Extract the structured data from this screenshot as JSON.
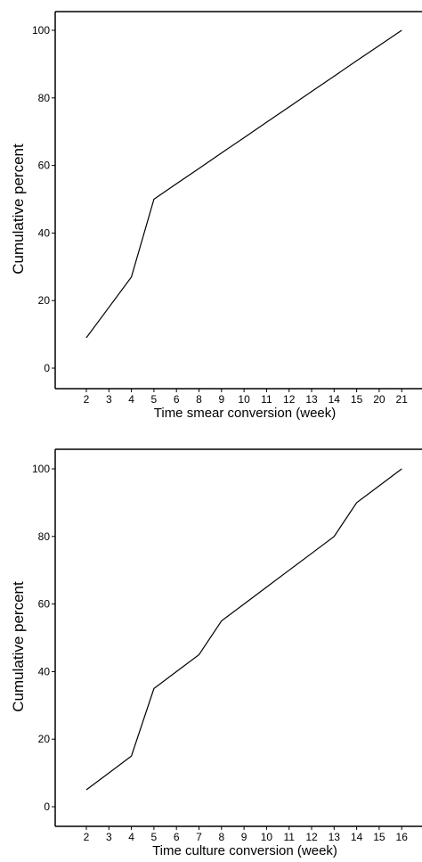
{
  "chart_data": [
    {
      "type": "line",
      "title": "",
      "xlabel": "Time smear conversion (week)",
      "ylabel": "Cumulative percent",
      "categories": [
        "2",
        "3",
        "4",
        "5",
        "6",
        "8",
        "9",
        "10",
        "11",
        "12",
        "13",
        "14",
        "15",
        "20",
        "21"
      ],
      "values": [
        9,
        18,
        27,
        50,
        54.6,
        59.1,
        63.7,
        68.2,
        72.8,
        77.3,
        81.9,
        86.4,
        91,
        95.5,
        100
      ],
      "ylim": [
        0,
        100
      ],
      "yticks": [
        0,
        20,
        40,
        60,
        80,
        100
      ],
      "grid": false,
      "color": "#000000"
    },
    {
      "type": "line",
      "title": "",
      "xlabel": "Time culture conversion (week)",
      "ylabel": "Cumulative percent",
      "categories": [
        "2",
        "3",
        "4",
        "5",
        "6",
        "7",
        "8",
        "9",
        "10",
        "11",
        "12",
        "13",
        "14",
        "15",
        "16"
      ],
      "values": [
        5,
        10,
        15,
        35,
        40,
        45,
        55,
        60,
        65,
        70,
        75,
        80,
        90,
        95,
        100
      ],
      "ylim": [
        0,
        100
      ],
      "yticks": [
        0,
        20,
        40,
        60,
        80,
        100
      ],
      "grid": false,
      "color": "#000000"
    }
  ]
}
